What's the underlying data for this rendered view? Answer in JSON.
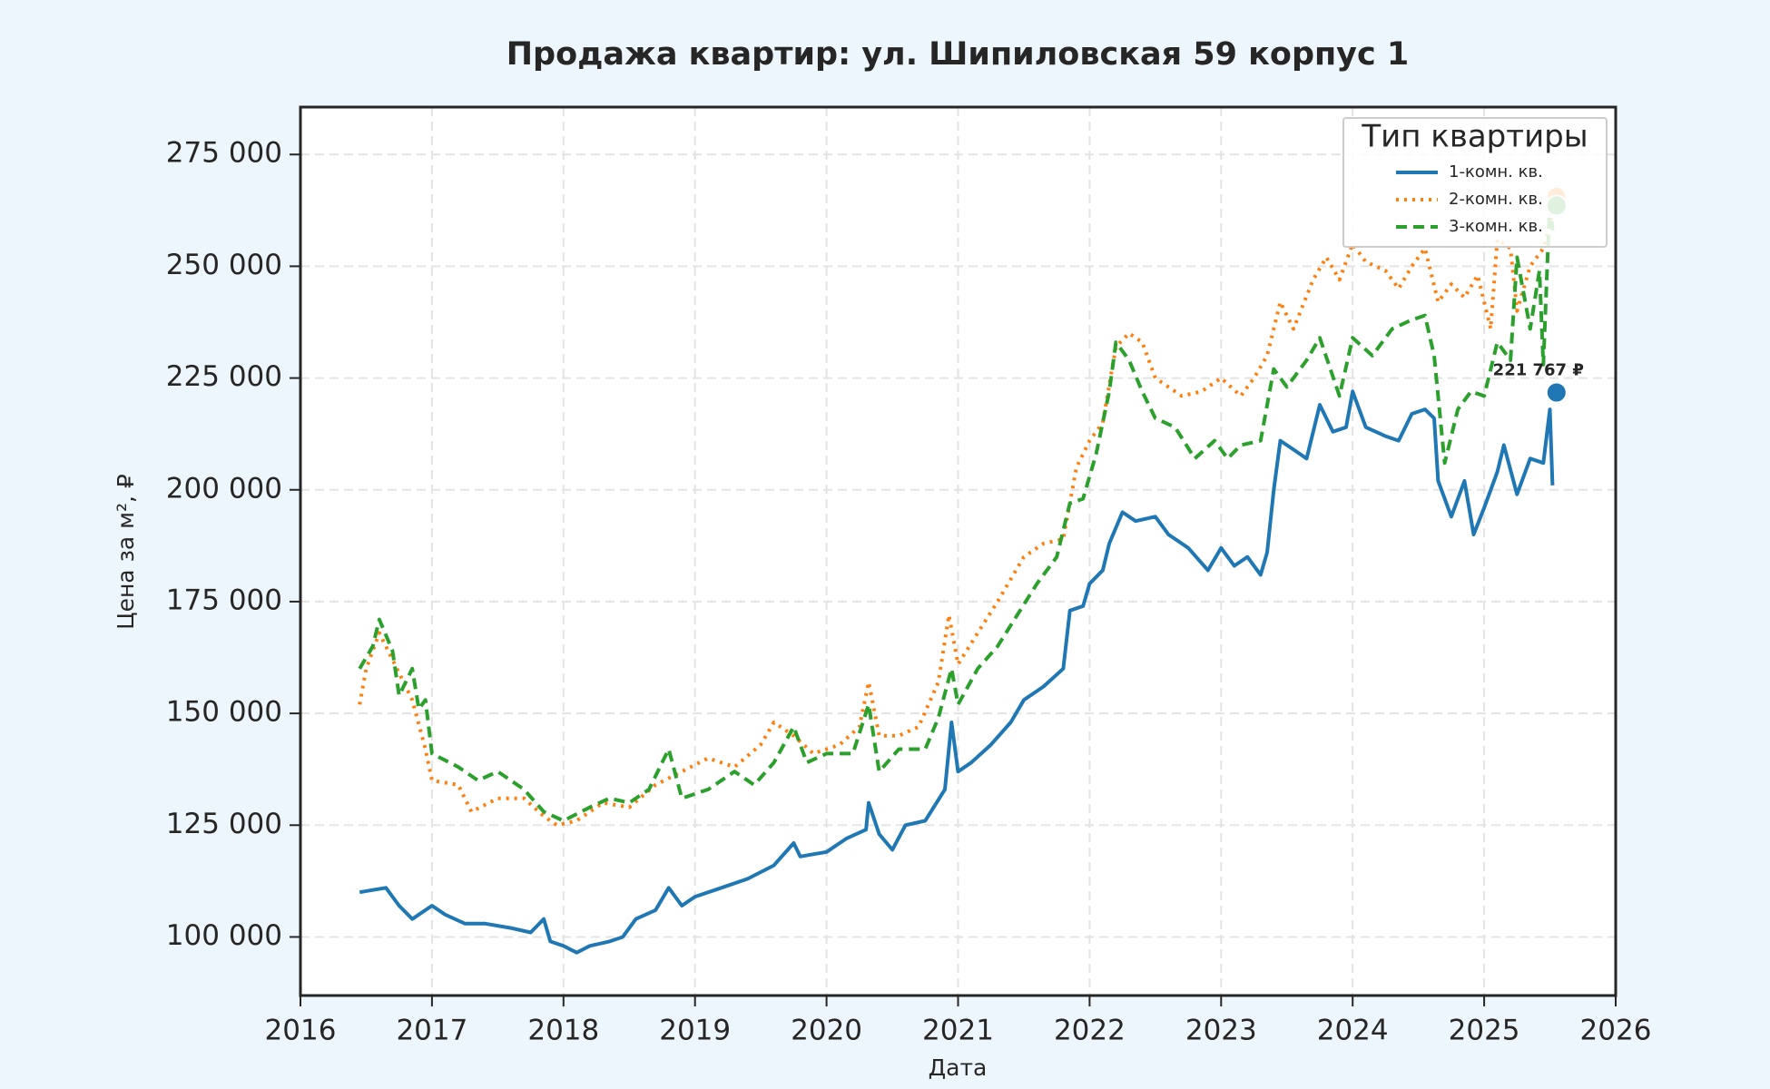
{
  "chart_data": {
    "type": "line",
    "title": "Продажа квартир: ул. Шипиловская 59 корпус 1",
    "xlabel": "Дата",
    "ylabel": "Цена за м², ₽",
    "xlim": [
      2016,
      2026
    ],
    "xticks": [
      2016,
      2017,
      2018,
      2019,
      2020,
      2021,
      2022,
      2023,
      2024,
      2025,
      2026
    ],
    "ylim": [
      86900,
      285600
    ],
    "yticks": [
      {
        "value": 100000,
        "label": "100 000"
      },
      {
        "value": 125000,
        "label": "125 000"
      },
      {
        "value": 150000,
        "label": "150 000"
      },
      {
        "value": 175000,
        "label": "175 000"
      },
      {
        "value": 200000,
        "label": "200 000"
      },
      {
        "value": 225000,
        "label": "225 000"
      },
      {
        "value": 250000,
        "label": "250 000"
      },
      {
        "value": 275000,
        "label": "275 000"
      }
    ],
    "grid": true,
    "legend_title": "Тип квартиры",
    "legend_position": "upper right",
    "series": [
      {
        "name": "1-комн. кв.",
        "color": "#1f77b4",
        "linestyle": "solid",
        "x": [
          2016.45,
          2016.55,
          2016.65,
          2016.75,
          2016.85,
          2017.0,
          2017.1,
          2017.25,
          2017.4,
          2017.6,
          2017.75,
          2017.85,
          2017.9,
          2018.0,
          2018.1,
          2018.2,
          2018.35,
          2018.45,
          2018.55,
          2018.7,
          2018.8,
          2018.9,
          2019.0,
          2019.2,
          2019.4,
          2019.5,
          2019.6,
          2019.75,
          2019.8,
          2020.0,
          2020.15,
          2020.3,
          2020.32,
          2020.4,
          2020.5,
          2020.6,
          2020.75,
          2020.9,
          2020.95,
          2021.0,
          2021.1,
          2021.25,
          2021.4,
          2021.5,
          2021.65,
          2021.8,
          2021.85,
          2021.95,
          2022.0,
          2022.1,
          2022.15,
          2022.25,
          2022.35,
          2022.5,
          2022.6,
          2022.75,
          2022.9,
          2023.0,
          2023.1,
          2023.2,
          2023.3,
          2023.35,
          2023.4,
          2023.45,
          2023.55,
          2023.65,
          2023.75,
          2023.85,
          2023.95,
          2024.0,
          2024.1,
          2024.25,
          2024.35,
          2024.45,
          2024.55,
          2024.62,
          2024.65,
          2024.75,
          2024.85,
          2024.92,
          2025.0,
          2025.1,
          2025.15,
          2025.25,
          2025.35,
          2025.45,
          2025.5,
          2025.52
        ],
        "values": [
          110000,
          110500,
          111000,
          107000,
          104000,
          107000,
          105000,
          103000,
          103000,
          102000,
          101000,
          104000,
          99000,
          98000,
          96500,
          98000,
          99000,
          100000,
          104000,
          106000,
          111000,
          107000,
          109000,
          111000,
          113000,
          114500,
          116000,
          121000,
          118000,
          119000,
          122000,
          124000,
          130000,
          123000,
          119500,
          125000,
          126000,
          133000,
          148000,
          137000,
          139000,
          143000,
          148000,
          153000,
          156000,
          160000,
          173000,
          174000,
          179000,
          182000,
          188000,
          195000,
          193000,
          194000,
          190000,
          187000,
          182000,
          187000,
          183000,
          185000,
          181000,
          186000,
          200000,
          211000,
          209000,
          207000,
          219000,
          213000,
          214000,
          222000,
          214000,
          212000,
          211000,
          217000,
          218000,
          216000,
          202000,
          194000,
          202000,
          190000,
          196000,
          204000,
          210000,
          199000,
          207000,
          206000,
          218000,
          201000
        ]
      },
      {
        "name": "2-комн. кв.",
        "color": "#ff7f0e",
        "linestyle": "dotted",
        "x": [
          2016.45,
          2016.5,
          2016.6,
          2016.75,
          2016.85,
          2016.95,
          2017.0,
          2017.2,
          2017.3,
          2017.5,
          2017.7,
          2017.85,
          2017.95,
          2018.1,
          2018.3,
          2018.5,
          2018.7,
          2018.9,
          2019.1,
          2019.3,
          2019.5,
          2019.6,
          2019.75,
          2019.9,
          2020.1,
          2020.25,
          2020.32,
          2020.4,
          2020.55,
          2020.7,
          2020.85,
          2020.93,
          2021.0,
          2021.15,
          2021.3,
          2021.5,
          2021.65,
          2021.8,
          2021.9,
          2022.0,
          2022.1,
          2022.2,
          2022.3,
          2022.4,
          2022.5,
          2022.7,
          2022.85,
          2023.0,
          2023.15,
          2023.25,
          2023.35,
          2023.45,
          2023.55,
          2023.7,
          2023.8,
          2023.9,
          2024.0,
          2024.1,
          2024.25,
          2024.35,
          2024.45,
          2024.55,
          2024.65,
          2024.75,
          2024.85,
          2024.95,
          2025.05,
          2025.1,
          2025.2,
          2025.25,
          2025.35,
          2025.45,
          2025.52
        ],
        "values": [
          152000,
          160000,
          168000,
          159000,
          153000,
          142000,
          135000,
          134000,
          128000,
          131000,
          131000,
          127000,
          125000,
          126000,
          130000,
          129000,
          134000,
          137000,
          140000,
          138000,
          143000,
          148000,
          145000,
          141000,
          143000,
          147000,
          157000,
          145000,
          145000,
          147000,
          157000,
          172000,
          161000,
          168000,
          175000,
          185000,
          188000,
          189000,
          205000,
          211000,
          215000,
          232000,
          235000,
          233000,
          225000,
          221000,
          222000,
          225000,
          221000,
          225000,
          230000,
          242000,
          236000,
          247000,
          252000,
          247000,
          255000,
          251000,
          249000,
          245000,
          250000,
          254000,
          242000,
          246000,
          243000,
          248000,
          236000,
          256000,
          254000,
          240000,
          250000,
          254000,
          262000
        ]
      },
      {
        "name": "3-комн. кв.",
        "color": "#2ca02c",
        "linestyle": "dashed",
        "x": [
          2016.45,
          2016.55,
          2016.6,
          2016.7,
          2016.75,
          2016.85,
          2016.9,
          2016.95,
          2017.0,
          2017.2,
          2017.35,
          2017.5,
          2017.7,
          2017.85,
          2018.0,
          2018.2,
          2018.35,
          2018.5,
          2018.65,
          2018.8,
          2018.9,
          2019.1,
          2019.3,
          2019.45,
          2019.6,
          2019.75,
          2019.85,
          2020.0,
          2020.2,
          2020.32,
          2020.4,
          2020.55,
          2020.75,
          2020.85,
          2020.95,
          2021.0,
          2021.15,
          2021.3,
          2021.45,
          2021.6,
          2021.75,
          2021.85,
          2021.95,
          2022.05,
          2022.15,
          2022.2,
          2022.3,
          2022.4,
          2022.5,
          2022.65,
          2022.8,
          2022.95,
          2023.05,
          2023.15,
          2023.3,
          2023.4,
          2023.5,
          2023.65,
          2023.75,
          2023.9,
          2024.0,
          2024.15,
          2024.3,
          2024.45,
          2024.55,
          2024.62,
          2024.7,
          2024.8,
          2024.9,
          2025.0,
          2025.1,
          2025.2,
          2025.25,
          2025.35,
          2025.42,
          2025.45,
          2025.5,
          2025.52
        ],
        "values": [
          160000,
          165000,
          171000,
          164000,
          154000,
          160000,
          151000,
          153000,
          141000,
          138000,
          135000,
          137000,
          133000,
          128000,
          126000,
          129000,
          131000,
          130000,
          133000,
          142000,
          131000,
          133000,
          137000,
          134000,
          139000,
          147000,
          139000,
          141000,
          141000,
          152000,
          137000,
          142000,
          142000,
          149000,
          160000,
          152000,
          160000,
          165000,
          172000,
          179000,
          185000,
          197000,
          198000,
          208000,
          222000,
          233000,
          229000,
          222000,
          216000,
          214000,
          207000,
          211000,
          207000,
          210000,
          211000,
          227000,
          223000,
          229000,
          234000,
          221000,
          234000,
          230000,
          236000,
          238000,
          239000,
          230000,
          206000,
          218000,
          222000,
          221000,
          233000,
          229000,
          252000,
          236000,
          249000,
          228000,
          265000,
          258000
        ]
      }
    ],
    "end_points": [
      {
        "series": 0,
        "x": 2025.55,
        "y": 221767,
        "label": "221 767 ₽"
      },
      {
        "series": 1,
        "x": 2025.55,
        "y": 265500
      },
      {
        "series": 2,
        "x": 2025.55,
        "y": 263600
      }
    ]
  }
}
